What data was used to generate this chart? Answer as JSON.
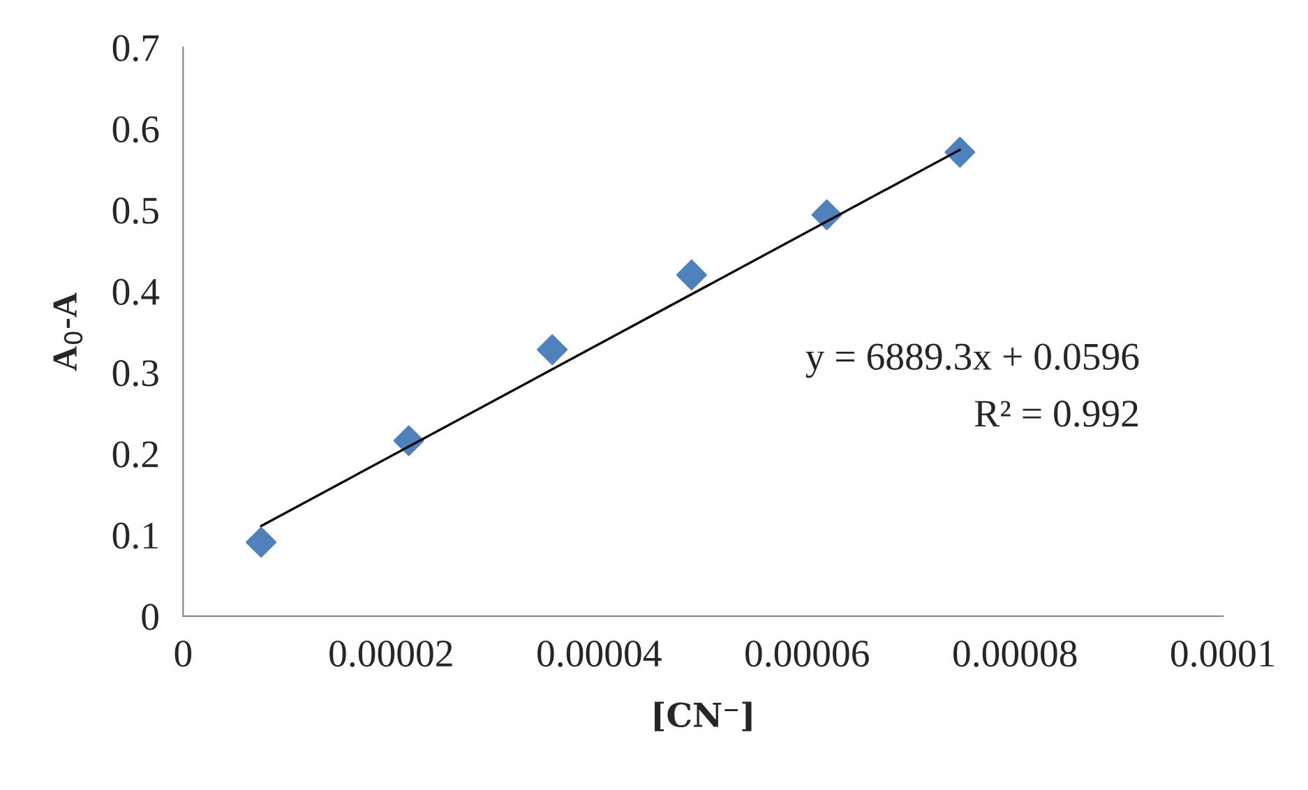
{
  "chart_data": {
    "type": "scatter",
    "xlabel": "[CN⁻]",
    "ylabel": "A$_{0}$-A",
    "series": [
      {
        "color": "#4f81bd",
        "marker": "diamond",
        "x": [
          7.5e-06,
          2.17e-05,
          3.55e-05,
          4.89e-05,
          6.19e-05,
          7.47e-05
        ],
        "values": [
          0.091,
          0.216,
          0.328,
          0.42,
          0.494,
          0.571
        ]
      },
      {
        "type": "line",
        "color": "#000000",
        "marker": "none",
        "line_style": "solid",
        "x": [
          7.5e-06,
          7.47e-05
        ],
        "values": [
          0.111,
          0.574
        ]
      }
    ],
    "xlim": [
      0,
      0.0001
    ],
    "ylim": [
      0,
      0.7
    ],
    "xticks": [
      0,
      {
        "value": 2e-05,
        "label": "0.00002"
      },
      {
        "value": 4e-05,
        "label": "0.00004"
      },
      {
        "value": 6e-05,
        "label": "0.00006"
      },
      {
        "value": 8e-05,
        "label": "0.00008"
      },
      {
        "value": 0.0001,
        "label": "0.0001"
      }
    ],
    "yticks": [
      0,
      0.1,
      0.2,
      0.3,
      0.4,
      0.5,
      0.6,
      0.7
    ],
    "annotations": [
      "y = 6889.3x + 0.0596",
      "R² = 0.992"
    ],
    "grid": false,
    "legend": false
  }
}
